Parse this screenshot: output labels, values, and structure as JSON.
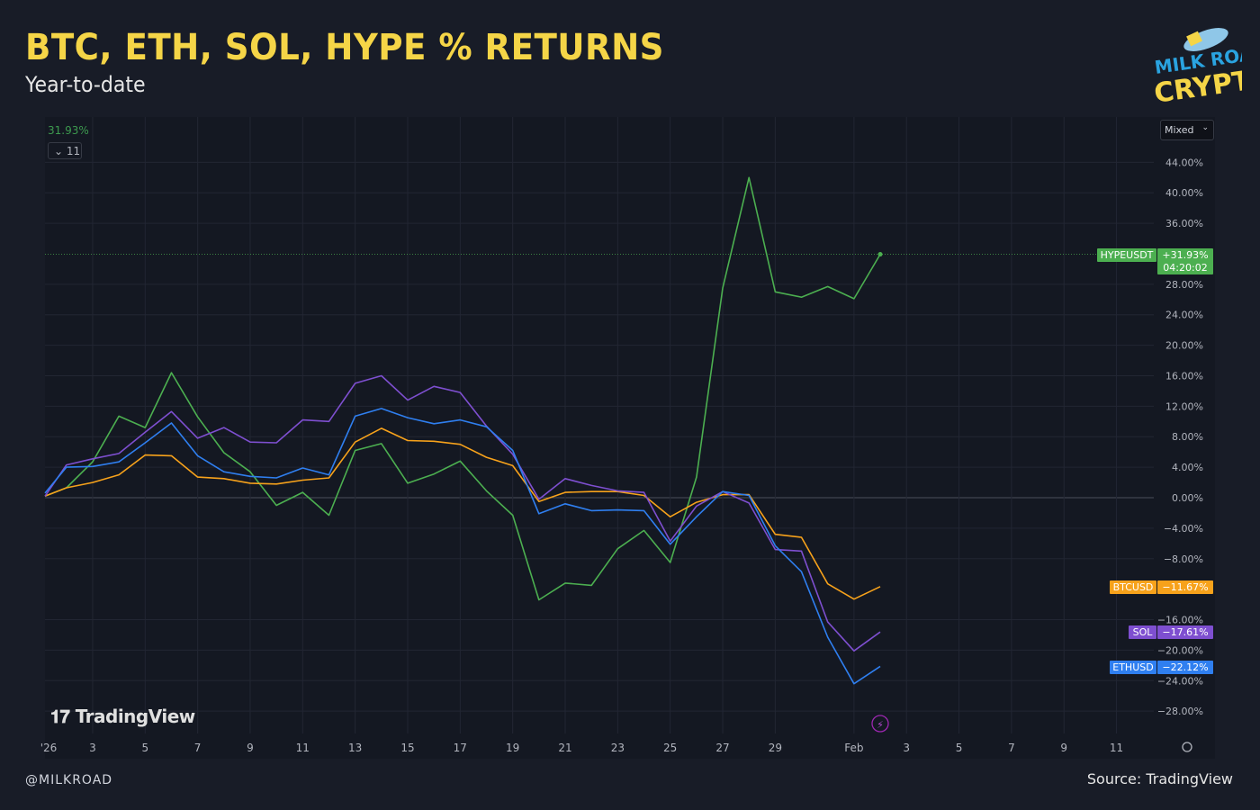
{
  "header": {
    "title": "BTC, ETH, SOL, HYPE % RETURNS",
    "subtitle": "Year-to-date",
    "logo_text": "MILK ROAD CRYPTO"
  },
  "toolbar": {
    "scale_mode": "Mixed",
    "legend_value": "31.93%",
    "collapsed_count": "11",
    "watermark": "TradingView"
  },
  "footer": {
    "handle": "@MILKROAD",
    "source": "Source: TradingView"
  },
  "colors": {
    "HYPE": "#4caf50",
    "BTC": "#f7a21b",
    "SOL": "#7e4fd0",
    "ETH": "#2f7ff0",
    "title": "#f5d547"
  },
  "chart_data": {
    "type": "line",
    "title": "BTC, ETH, SOL, HYPE % RETURNS",
    "subtitle": "Year-to-date",
    "x": [
      "Jan 1",
      "Jan 2",
      "Jan 3",
      "Jan 4",
      "Jan 5",
      "Jan 6",
      "Jan 7",
      "Jan 8",
      "Jan 9",
      "Jan 10",
      "Jan 11",
      "Jan 12",
      "Jan 13",
      "Jan 14",
      "Jan 15",
      "Jan 16",
      "Jan 17",
      "Jan 18",
      "Jan 19",
      "Jan 20",
      "Jan 21",
      "Jan 22",
      "Jan 23",
      "Jan 24",
      "Jan 25",
      "Jan 26",
      "Jan 27",
      "Jan 28",
      "Jan 29",
      "Jan 30",
      "Jan 31",
      "Feb 1",
      "Feb 2"
    ],
    "x_tick_labels": [
      "'26",
      "3",
      "5",
      "7",
      "9",
      "11",
      "13",
      "15",
      "17",
      "19",
      "21",
      "23",
      "25",
      "27",
      "29",
      "Feb",
      "3",
      "5",
      "7",
      "9",
      "11"
    ],
    "y_ticks": [
      44,
      40,
      36,
      28,
      24,
      20,
      16,
      12,
      8,
      4,
      0,
      -4,
      -8,
      -16,
      -20,
      -24,
      -28
    ],
    "y_unit": "%",
    "ylim": [
      -31,
      48
    ],
    "grid": true,
    "series": [
      {
        "name": "HYPEUSDT",
        "key": "HYPE",
        "last_label": "+31.93%",
        "countdown": "04:20:02",
        "values": [
          0.2,
          1.3,
          4.7,
          10.7,
          9.2,
          16.4,
          10.6,
          5.9,
          3.4,
          -1.0,
          0.7,
          -2.3,
          6.2,
          7.1,
          1.9,
          3.1,
          4.8,
          0.9,
          -2.3,
          -13.4,
          -11.2,
          -11.5,
          -6.7,
          -4.3,
          -8.5,
          2.7,
          27.5,
          42.0,
          27.0,
          26.3,
          27.7,
          26.1,
          31.93
        ]
      },
      {
        "name": "BTCUSD",
        "key": "BTC",
        "last_label": "−11.67%",
        "values": [
          0.2,
          1.3,
          2.0,
          3.0,
          5.6,
          5.5,
          2.7,
          2.5,
          1.9,
          1.8,
          2.3,
          2.6,
          7.3,
          9.1,
          7.5,
          7.4,
          7.0,
          5.3,
          4.2,
          -0.5,
          0.7,
          0.8,
          0.8,
          0.3,
          -2.5,
          -0.6,
          0.4,
          0.4,
          -4.8,
          -5.2,
          -11.3,
          -13.3,
          -11.67
        ]
      },
      {
        "name": "SOL",
        "key": "SOL",
        "last_label": "−17.61%",
        "values": [
          0.2,
          4.3,
          5.1,
          5.8,
          8.6,
          11.3,
          7.8,
          9.2,
          7.3,
          7.2,
          10.2,
          10.0,
          15.0,
          16.0,
          12.8,
          14.6,
          13.8,
          9.4,
          5.7,
          -0.2,
          2.5,
          1.6,
          0.9,
          0.7,
          -5.7,
          -1.1,
          0.8,
          -0.7,
          -6.8,
          -7.0,
          -16.3,
          -20.1,
          -17.61
        ]
      },
      {
        "name": "ETHUSD",
        "key": "ETH",
        "last_label": "−22.12%",
        "values": [
          0.6,
          4.0,
          4.1,
          4.7,
          7.2,
          9.8,
          5.5,
          3.4,
          2.8,
          2.6,
          3.9,
          3.0,
          10.7,
          11.7,
          10.5,
          9.7,
          10.2,
          9.3,
          6.2,
          -2.1,
          -0.8,
          -1.7,
          -1.6,
          -1.7,
          -6.1,
          -2.5,
          0.8,
          0.3,
          -6.3,
          -9.7,
          -18.3,
          -24.4,
          -22.12
        ]
      }
    ]
  }
}
